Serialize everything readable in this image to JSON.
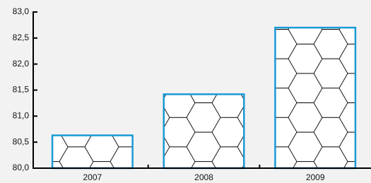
{
  "chart_data": {
    "type": "bar",
    "categories": [
      "2007",
      "2008",
      "2009"
    ],
    "values": [
      80.63,
      81.42,
      82.7
    ],
    "color": "#1a9ad6",
    "ylim": [
      80,
      83
    ],
    "yticks": [
      {
        "value": 80,
        "label": "80,0"
      },
      {
        "value": 80.5,
        "label": "80,5"
      },
      {
        "value": 81,
        "label": "81,0"
      },
      {
        "value": 81.5,
        "label": "81,5"
      },
      {
        "value": 82,
        "label": "82,0"
      },
      {
        "value": 82.5,
        "label": "82,5"
      },
      {
        "value": 83,
        "label": "83,0"
      }
    ]
  }
}
